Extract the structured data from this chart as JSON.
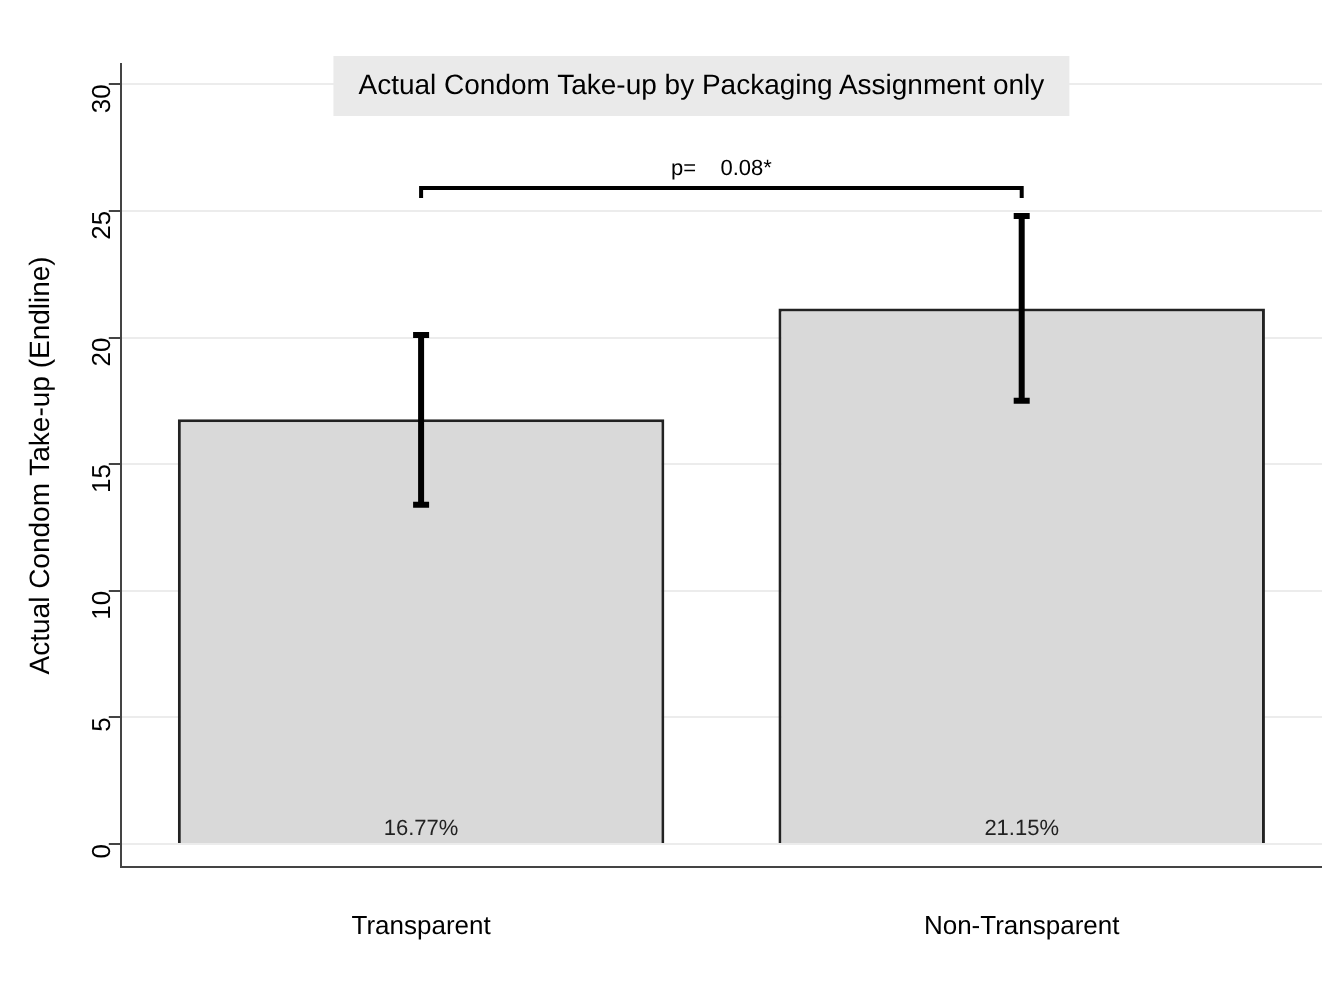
{
  "chart_data": {
    "type": "bar",
    "title": "Actual Condom Take-up by Packaging Assignment only",
    "ylabel": "Actual Condom Take-up (Endline)",
    "categories": [
      "Transparent",
      "Non-Transparent"
    ],
    "values": [
      16.77,
      21.15
    ],
    "value_labels": [
      "16.77%",
      "21.15%"
    ],
    "errors": [
      [
        13.4,
        20.1
      ],
      [
        17.5,
        24.8
      ]
    ],
    "color": "#d9d9d9",
    "ylim": [
      -0.9,
      30.8
    ],
    "yticks": [
      0,
      5,
      10,
      15,
      20,
      25,
      30
    ],
    "grid": "y",
    "annotations": [
      "p=    0.08*"
    ]
  }
}
